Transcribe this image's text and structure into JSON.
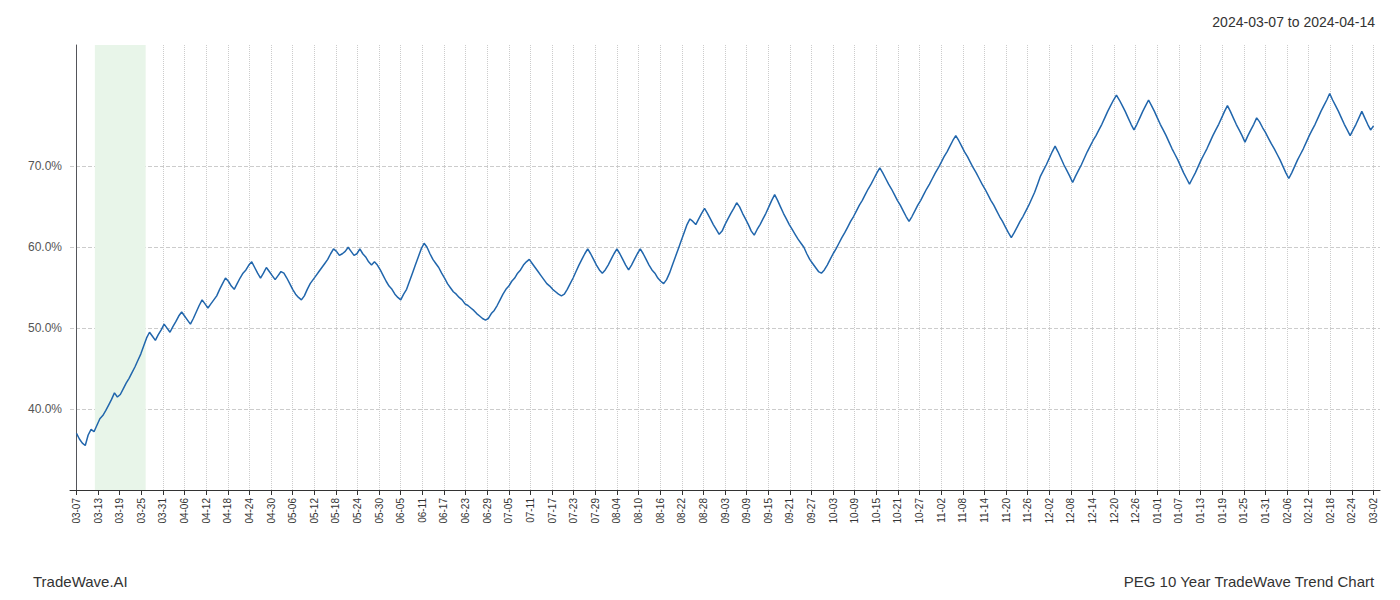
{
  "chart_data": {
    "type": "line",
    "title": "2024-03-07 to 2024-04-14",
    "footer_left": "TradeWave.AI",
    "footer_right": "PEG 10 Year TradeWave Trend Chart",
    "color": "#2166ac",
    "highlight": [
      6.29,
      23.68
    ],
    "highlight_color": "#e8f5e9",
    "grid": true,
    "xlim": [
      -2.22,
      446.22
    ],
    "xticks": [
      {
        "value": 0,
        "label": "03-07"
      },
      {
        "value": 7.4,
        "label": "03-13"
      },
      {
        "value": 14.8,
        "label": "03-19"
      },
      {
        "value": 22.2,
        "label": "03-25"
      },
      {
        "value": 29.6,
        "label": "03-31"
      },
      {
        "value": 37,
        "label": "04-06"
      },
      {
        "value": 44.4,
        "label": "04-12"
      },
      {
        "value": 51.8,
        "label": "04-18"
      },
      {
        "value": 59.2,
        "label": "04-24"
      },
      {
        "value": 66.6,
        "label": "04-30"
      },
      {
        "value": 74,
        "label": "05-06"
      },
      {
        "value": 81.4,
        "label": "05-12"
      },
      {
        "value": 88.8,
        "label": "05-18"
      },
      {
        "value": 96.2,
        "label": "05-24"
      },
      {
        "value": 103.6,
        "label": "05-30"
      },
      {
        "value": 111,
        "label": "06-05"
      },
      {
        "value": 118.4,
        "label": "06-11"
      },
      {
        "value": 125.8,
        "label": "06-17"
      },
      {
        "value": 133.2,
        "label": "06-23"
      },
      {
        "value": 140.6,
        "label": "06-29"
      },
      {
        "value": 148,
        "label": "07-05"
      },
      {
        "value": 155.4,
        "label": "07-11"
      },
      {
        "value": 162.8,
        "label": "07-17"
      },
      {
        "value": 170.2,
        "label": "07-23"
      },
      {
        "value": 177.6,
        "label": "07-29"
      },
      {
        "value": 185,
        "label": "08-04"
      },
      {
        "value": 192.4,
        "label": "08-10"
      },
      {
        "value": 199.8,
        "label": "08-16"
      },
      {
        "value": 207.2,
        "label": "08-22"
      },
      {
        "value": 214.6,
        "label": "08-28"
      },
      {
        "value": 222,
        "label": "09-03"
      },
      {
        "value": 229.4,
        "label": "09-09"
      },
      {
        "value": 236.8,
        "label": "09-15"
      },
      {
        "value": 244.2,
        "label": "09-21"
      },
      {
        "value": 251.6,
        "label": "09-27"
      },
      {
        "value": 259,
        "label": "10-03"
      },
      {
        "value": 266.4,
        "label": "10-09"
      },
      {
        "value": 273.8,
        "label": "10-15"
      },
      {
        "value": 281.2,
        "label": "10-21"
      },
      {
        "value": 288.6,
        "label": "10-27"
      },
      {
        "value": 296,
        "label": "11-02"
      },
      {
        "value": 303.4,
        "label": "11-08"
      },
      {
        "value": 310.8,
        "label": "11-14"
      },
      {
        "value": 318.2,
        "label": "11-20"
      },
      {
        "value": 325.6,
        "label": "11-26"
      },
      {
        "value": 333,
        "label": "12-02"
      },
      {
        "value": 340.4,
        "label": "12-08"
      },
      {
        "value": 347.8,
        "label": "12-14"
      },
      {
        "value": 355.2,
        "label": "12-20"
      },
      {
        "value": 362.6,
        "label": "12-26"
      },
      {
        "value": 370,
        "label": "01-01"
      },
      {
        "value": 377.4,
        "label": "01-07"
      },
      {
        "value": 384.8,
        "label": "01-13"
      },
      {
        "value": 392.2,
        "label": "01-19"
      },
      {
        "value": 399.6,
        "label": "01-25"
      },
      {
        "value": 407,
        "label": "01-31"
      },
      {
        "value": 414.4,
        "label": "02-06"
      },
      {
        "value": 421.8,
        "label": "02-12"
      },
      {
        "value": 429.2,
        "label": "02-18"
      },
      {
        "value": 436.6,
        "label": "02-24"
      },
      {
        "value": 444,
        "label": "03-02"
      }
    ],
    "ylim": [
      0.3,
      0.85
    ],
    "yticks": [
      {
        "value": 0.4,
        "label": "40.0%"
      },
      {
        "value": 0.5,
        "label": "50.0%"
      },
      {
        "value": 0.6,
        "label": "60.0%"
      },
      {
        "value": 0.7,
        "label": "70.0%"
      }
    ],
    "values": [
      0.37,
      0.363,
      0.358,
      0.355,
      0.368,
      0.375,
      0.372,
      0.38,
      0.388,
      0.392,
      0.398,
      0.405,
      0.412,
      0.42,
      0.415,
      0.418,
      0.425,
      0.432,
      0.438,
      0.445,
      0.452,
      0.46,
      0.468,
      0.478,
      0.488,
      0.495,
      0.49,
      0.485,
      0.492,
      0.498,
      0.505,
      0.5,
      0.495,
      0.502,
      0.508,
      0.515,
      0.52,
      0.515,
      0.51,
      0.505,
      0.512,
      0.52,
      0.528,
      0.535,
      0.53,
      0.525,
      0.53,
      0.535,
      0.54,
      0.548,
      0.555,
      0.562,
      0.558,
      0.552,
      0.548,
      0.555,
      0.562,
      0.568,
      0.572,
      0.578,
      0.582,
      0.575,
      0.568,
      0.562,
      0.568,
      0.575,
      0.57,
      0.565,
      0.56,
      0.565,
      0.57,
      0.568,
      0.562,
      0.555,
      0.548,
      0.542,
      0.538,
      0.535,
      0.54,
      0.548,
      0.555,
      0.56,
      0.565,
      0.57,
      0.575,
      0.58,
      0.585,
      0.592,
      0.598,
      0.595,
      0.59,
      0.592,
      0.595,
      0.6,
      0.595,
      0.59,
      0.592,
      0.598,
      0.592,
      0.588,
      0.582,
      0.578,
      0.582,
      0.578,
      0.572,
      0.565,
      0.558,
      0.552,
      0.548,
      0.542,
      0.538,
      0.535,
      0.542,
      0.548,
      0.558,
      0.568,
      0.578,
      0.588,
      0.598,
      0.605,
      0.6,
      0.592,
      0.585,
      0.58,
      0.575,
      0.568,
      0.562,
      0.555,
      0.55,
      0.545,
      0.542,
      0.538,
      0.535,
      0.53,
      0.528,
      0.525,
      0.522,
      0.518,
      0.515,
      0.512,
      0.51,
      0.512,
      0.518,
      0.522,
      0.528,
      0.535,
      0.542,
      0.548,
      0.552,
      0.558,
      0.562,
      0.568,
      0.572,
      0.578,
      0.582,
      0.585,
      0.58,
      0.575,
      0.57,
      0.565,
      0.56,
      0.555,
      0.552,
      0.548,
      0.545,
      0.542,
      0.54,
      0.542,
      0.548,
      0.555,
      0.562,
      0.57,
      0.578,
      0.585,
      0.592,
      0.598,
      0.592,
      0.585,
      0.578,
      0.572,
      0.568,
      0.572,
      0.578,
      0.585,
      0.592,
      0.598,
      0.592,
      0.585,
      0.578,
      0.572,
      0.578,
      0.585,
      0.592,
      0.598,
      0.592,
      0.585,
      0.578,
      0.572,
      0.568,
      0.562,
      0.558,
      0.555,
      0.56,
      0.568,
      0.578,
      0.588,
      0.598,
      0.608,
      0.618,
      0.628,
      0.635,
      0.632,
      0.628,
      0.635,
      0.642,
      0.648,
      0.642,
      0.635,
      0.628,
      0.622,
      0.616,
      0.62,
      0.628,
      0.635,
      0.642,
      0.648,
      0.655,
      0.65,
      0.642,
      0.635,
      0.628,
      0.62,
      0.615,
      0.622,
      0.628,
      0.635,
      0.642,
      0.65,
      0.658,
      0.665,
      0.658,
      0.65,
      0.642,
      0.635,
      0.628,
      0.622,
      0.616,
      0.61,
      0.605,
      0.6,
      0.592,
      0.585,
      0.58,
      0.575,
      0.57,
      0.568,
      0.572,
      0.578,
      0.585,
      0.592,
      0.598,
      0.605,
      0.612,
      0.618,
      0.625,
      0.632,
      0.638,
      0.645,
      0.652,
      0.658,
      0.665,
      0.672,
      0.678,
      0.685,
      0.692,
      0.698,
      0.692,
      0.685,
      0.678,
      0.672,
      0.665,
      0.658,
      0.652,
      0.645,
      0.638,
      0.632,
      0.638,
      0.645,
      0.652,
      0.658,
      0.665,
      0.672,
      0.678,
      0.685,
      0.692,
      0.698,
      0.705,
      0.712,
      0.718,
      0.725,
      0.732,
      0.738,
      0.732,
      0.725,
      0.718,
      0.712,
      0.705,
      0.698,
      0.692,
      0.685,
      0.678,
      0.672,
      0.665,
      0.658,
      0.652,
      0.645,
      0.638,
      0.632,
      0.625,
      0.618,
      0.612,
      0.618,
      0.625,
      0.632,
      0.638,
      0.645,
      0.652,
      0.66,
      0.668,
      0.678,
      0.688,
      0.695,
      0.702,
      0.71,
      0.718,
      0.725,
      0.718,
      0.71,
      0.702,
      0.695,
      0.688,
      0.68,
      0.688,
      0.695,
      0.702,
      0.71,
      0.718,
      0.725,
      0.732,
      0.738,
      0.745,
      0.752,
      0.76,
      0.768,
      0.775,
      0.782,
      0.788,
      0.782,
      0.775,
      0.768,
      0.76,
      0.752,
      0.745,
      0.752,
      0.76,
      0.768,
      0.775,
      0.782,
      0.775,
      0.768,
      0.76,
      0.752,
      0.745,
      0.738,
      0.73,
      0.722,
      0.715,
      0.708,
      0.7,
      0.692,
      0.685,
      0.678,
      0.685,
      0.692,
      0.7,
      0.708,
      0.715,
      0.722,
      0.73,
      0.738,
      0.745,
      0.752,
      0.76,
      0.768,
      0.775,
      0.768,
      0.76,
      0.752,
      0.745,
      0.738,
      0.73,
      0.738,
      0.745,
      0.752,
      0.76,
      0.755,
      0.748,
      0.742,
      0.735,
      0.728,
      0.722,
      0.715,
      0.708,
      0.7,
      0.692,
      0.685,
      0.692,
      0.7,
      0.708,
      0.715,
      0.722,
      0.73,
      0.738,
      0.745,
      0.752,
      0.76,
      0.768,
      0.775,
      0.782,
      0.79,
      0.782,
      0.775,
      0.768,
      0.76,
      0.752,
      0.745,
      0.738,
      0.745,
      0.752,
      0.76,
      0.768,
      0.76,
      0.752,
      0.745,
      0.75
    ]
  }
}
